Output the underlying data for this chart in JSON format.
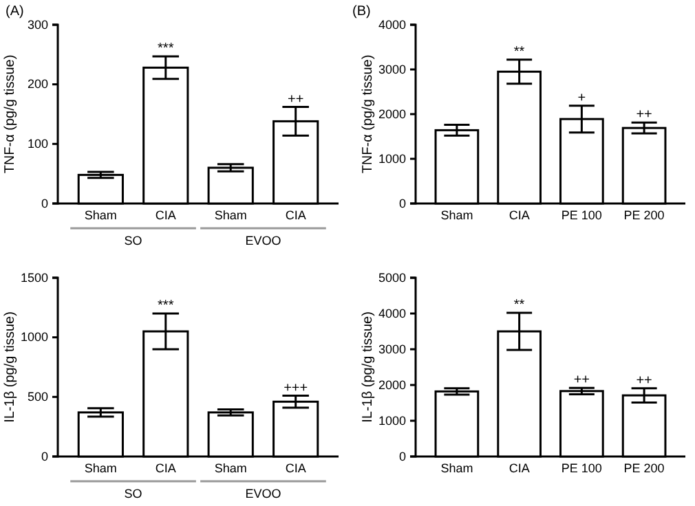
{
  "chart_data": [
    {
      "type": "bar",
      "title": "(A)",
      "ylabel": "TNF-α (pg/g tissue)",
      "categories": [
        "Sham",
        "CIA",
        "Sham",
        "CIA"
      ],
      "values": [
        48,
        228,
        60,
        138
      ],
      "errors": [
        5,
        19,
        6,
        24
      ],
      "color": "#ffffff",
      "ylim": [
        0,
        300
      ],
      "yticks": [
        0,
        100,
        200,
        300
      ],
      "annotations": [
        {
          "text": "***",
          "x": "CIA",
          "y": 247
        },
        "++",
        "SO",
        "EVOO"
      ]
    },
    {
      "type": "bar",
      "title": "(B)",
      "ylabel": "TNF-α (pg/g tissue)",
      "categories": [
        "Sham",
        "CIA",
        "PE 100",
        "PE 200"
      ],
      "values": [
        1640,
        2950,
        1890,
        1690
      ],
      "errors": [
        120,
        270,
        300,
        120
      ],
      "color": "#ffffff",
      "ylim": [
        0,
        4000
      ],
      "yticks": [
        0,
        1000,
        2000,
        3000,
        4000
      ],
      "annotations": [
        {
          "text": "**",
          "x": "CIA",
          "y": 3220
        },
        {
          "text": "+",
          "x": "PE 100",
          "y": 2190
        },
        {
          "text": "++",
          "x": "PE 200",
          "y": 1810
        }
      ]
    },
    {
      "type": "bar",
      "ylabel": "IL-1β (pg/g tissue)",
      "categories": [
        "Sham",
        "CIA",
        "Sham",
        "CIA"
      ],
      "values": [
        370,
        1050,
        370,
        460
      ],
      "errors": [
        35,
        150,
        25,
        50
      ],
      "color": "#ffffff",
      "ylim": [
        0,
        1500
      ],
      "yticks": [
        0,
        500,
        1000,
        1500
      ],
      "annotations": [
        {
          "text": "***",
          "x": "CIA",
          "y": 1200
        },
        "+++",
        "SO",
        "EVOO"
      ]
    },
    {
      "type": "bar",
      "ylabel": "IL-1β (pg/g tissue)",
      "categories": [
        "Sham",
        "CIA",
        "PE 100",
        "PE 200"
      ],
      "values": [
        1820,
        3500,
        1830,
        1710
      ],
      "errors": [
        90,
        520,
        90,
        200
      ],
      "color": "#ffffff",
      "ylim": [
        0,
        5000
      ],
      "yticks": [
        0,
        1000,
        2000,
        3000,
        4000,
        5000
      ],
      "annotations": [
        {
          "text": "**",
          "x": "CIA",
          "y": 4020
        },
        {
          "text": "++",
          "x": "PE 100",
          "y": 1920
        },
        {
          "text": "++",
          "x": "PE 200",
          "y": 1910
        }
      ]
    }
  ]
}
